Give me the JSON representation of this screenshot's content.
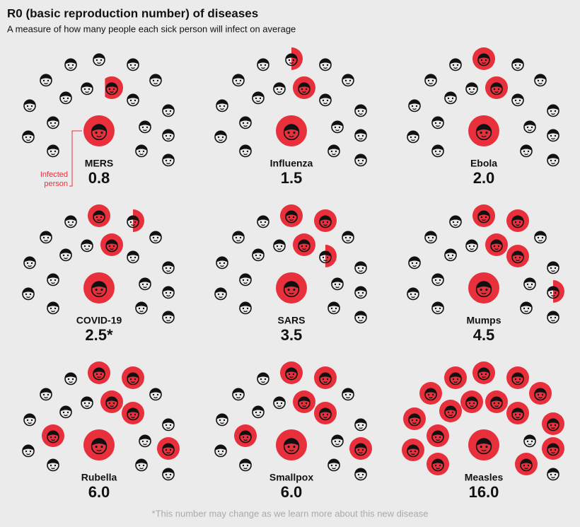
{
  "chart_data": {
    "type": "pictogram",
    "title": "R0 (basic reproduction number) of diseases",
    "subtitle": "A measure of how many people each sick person will infect on average",
    "categories": [
      "MERS",
      "Influenza",
      "Ebola",
      "COVID-19",
      "SARS",
      "Mumps",
      "Rubella",
      "Smallpox",
      "Measles"
    ],
    "values": [
      0.8,
      1.5,
      2.0,
      2.5,
      3.5,
      4.5,
      6.0,
      6.0,
      16.0
    ],
    "value_labels": [
      "0.8",
      "1.5",
      "2.0",
      "2.5*",
      "3.5",
      "4.5",
      "6.0",
      "6.0",
      "16.0"
    ],
    "annotation": "Infected person",
    "footnote": "*This number may change as we learn more about this new disease",
    "color": "#e8303d"
  }
}
